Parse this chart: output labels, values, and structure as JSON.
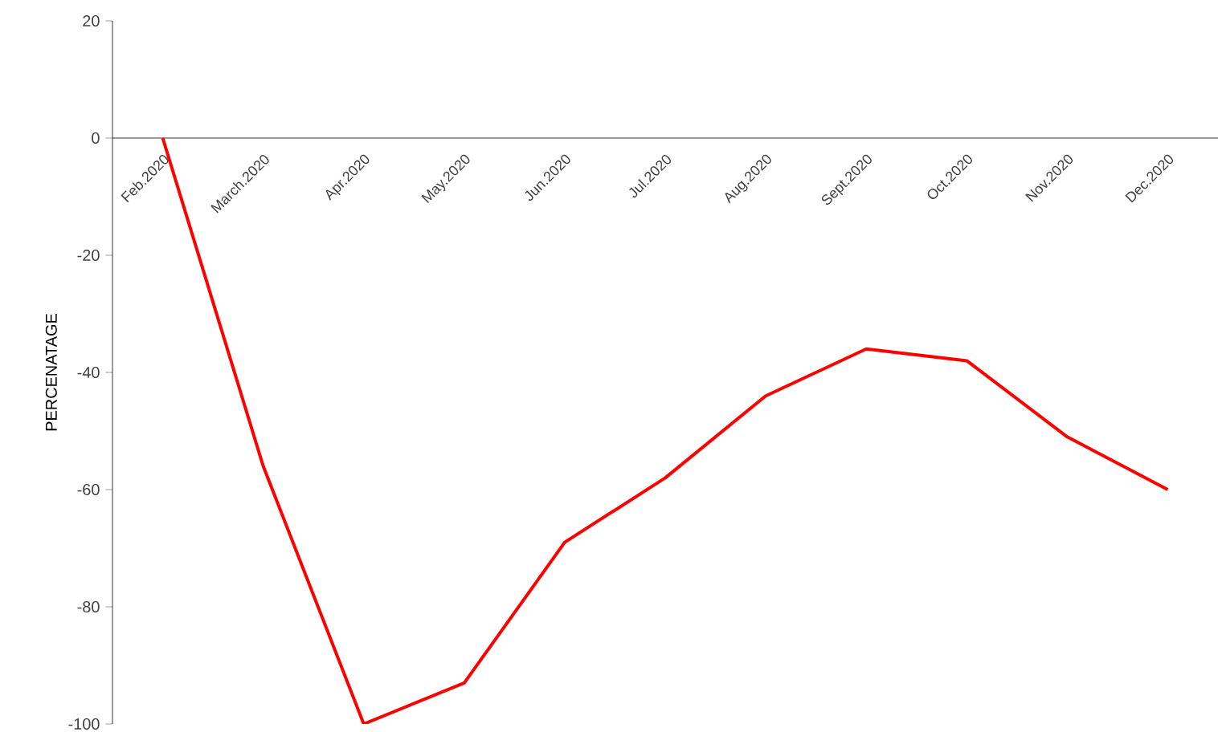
{
  "chart_data": {
    "type": "line",
    "ylabel": "PERCENATAGE",
    "categories": [
      "Feb.2020",
      "March.2020",
      "Apr.2020",
      "May.2020",
      "Jun.2020",
      "Jul.2020",
      "Aug.2020",
      "Sept.2020",
      "Oct.2020",
      "Nov.2020",
      "Dec.2020"
    ],
    "series": [
      {
        "color": "#ff0000",
        "values": [
          0,
          -56,
          -100,
          -93,
          -69,
          -58,
          -44,
          -36,
          -38,
          -51,
          -60
        ]
      }
    ],
    "ylim": [
      -100,
      20
    ],
    "yticks": [
      -100,
      -80,
      -60,
      -40,
      -20,
      0,
      20
    ],
    "marker": "none",
    "line_style": "solid",
    "grid": false
  }
}
